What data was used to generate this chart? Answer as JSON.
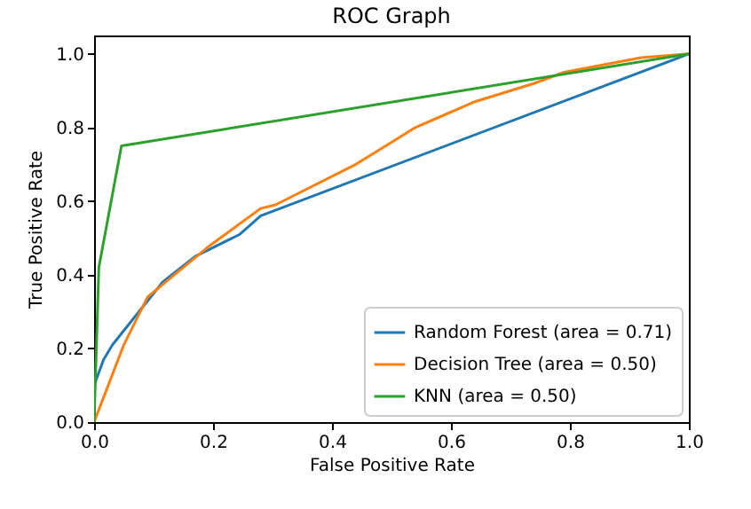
{
  "chart_data": {
    "type": "line",
    "title": "ROC Graph",
    "xlabel": "False Positive Rate",
    "ylabel": "True Positive Rate",
    "xlim": [
      0,
      1
    ],
    "ylim": [
      0,
      1.05
    ],
    "xticks": [
      {
        "value": 0,
        "label": "0.0"
      },
      {
        "value": 0.2,
        "label": "0.2"
      },
      {
        "value": 0.4,
        "label": "0.4"
      },
      {
        "value": 0.6,
        "label": "0.6"
      },
      {
        "value": 0.8,
        "label": "0.8"
      },
      {
        "value": 1,
        "label": "1.0"
      }
    ],
    "yticks": [
      {
        "value": 0,
        "label": "0.0"
      },
      {
        "value": 0.2,
        "label": "0.2"
      },
      {
        "value": 0.4,
        "label": "0.4"
      },
      {
        "value": 0.6,
        "label": "0.6"
      },
      {
        "value": 0.8,
        "label": "0.8"
      },
      {
        "value": 1,
        "label": "1.0"
      }
    ],
    "grid": false,
    "legend": "bottom right",
    "line_style": "solid",
    "marker": "none",
    "series": [
      {
        "name": "Random Forest (area = 0.71)",
        "color": "#1f77b4",
        "x": [
          0,
          0,
          0.016,
          0.031,
          0.115,
          0.17,
          0.245,
          0.28,
          1
        ],
        "values": [
          0,
          0.1,
          0.17,
          0.21,
          0.38,
          0.45,
          0.51,
          0.56,
          1
        ]
      },
      {
        "name": "Decision Tree (area = 0.50)",
        "color": "#ff7f0e",
        "x": [
          0,
          0.05,
          0.09,
          0.195,
          0.28,
          0.305,
          0.44,
          0.5,
          0.54,
          0.64,
          0.74,
          0.79,
          0.92,
          1
        ],
        "values": [
          0,
          0.21,
          0.34,
          0.48,
          0.58,
          0.59,
          0.7,
          0.76,
          0.8,
          0.87,
          0.92,
          0.95,
          0.99,
          1
        ]
      },
      {
        "name": "KNN (area = 0.50)",
        "color": "#2ca02c",
        "x": [
          0,
          0.008,
          0.046,
          1
        ],
        "values": [
          0,
          0.42,
          0.75,
          1
        ]
      }
    ]
  }
}
